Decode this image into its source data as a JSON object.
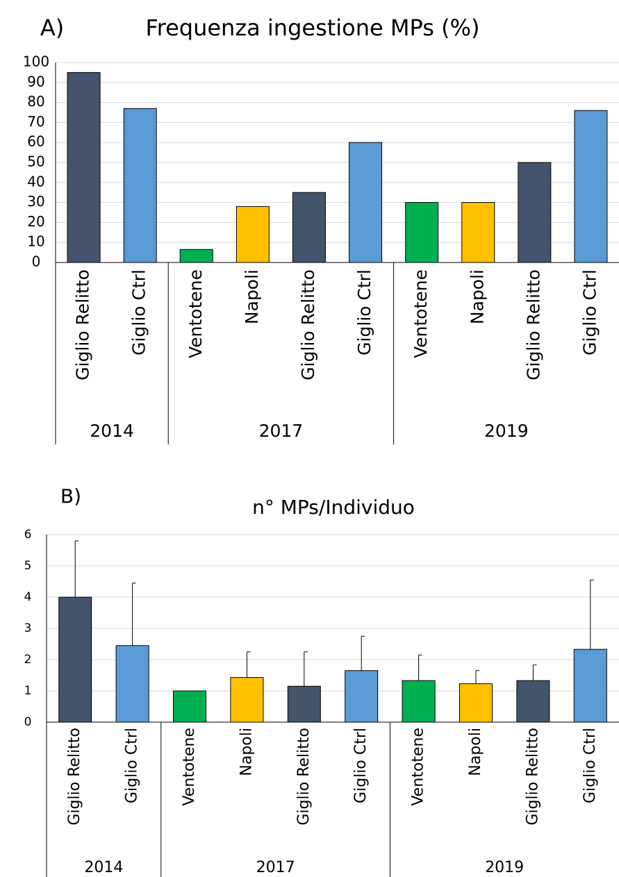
{
  "chart_data": [
    {
      "type": "bar",
      "label": "A)",
      "title": "Frequenza ingestione MPs (%)",
      "groups": [
        {
          "name": "2014",
          "categories": [
            "Giglio Relitto",
            "Giglio Ctrl"
          ]
        },
        {
          "name": "2017",
          "categories": [
            "Ventotene",
            "Napoli",
            "Giglio Relitto",
            "Giglio Ctrl"
          ]
        },
        {
          "name": "2019",
          "categories": [
            "Ventotene",
            "Napoli",
            "Giglio Relitto",
            "Giglio Ctrl"
          ]
        }
      ],
      "values": [
        95,
        77,
        6.5,
        28,
        35,
        60,
        30,
        30,
        50,
        76
      ],
      "colors": [
        "#44546a",
        "#5b9bd5",
        "#00b050",
        "#ffc000",
        "#44546a",
        "#5b9bd5",
        "#00b050",
        "#ffc000",
        "#44546a",
        "#5b9bd5"
      ],
      "ylim": [
        0,
        100
      ],
      "yticks": [
        0,
        10,
        20,
        30,
        40,
        50,
        60,
        70,
        80,
        90,
        100
      ],
      "grid": true
    },
    {
      "type": "bar",
      "label": "B)",
      "title": "n° MPs/Individuo",
      "groups": [
        {
          "name": "2014",
          "categories": [
            "Giglio Relitto",
            "Giglio Ctrl"
          ]
        },
        {
          "name": "2017",
          "categories": [
            "Ventotene",
            "Napoli",
            "Giglio Relitto",
            "Giglio Ctrl"
          ]
        },
        {
          "name": "2019",
          "categories": [
            "Ventotene",
            "Napoli",
            "Giglio Relitto",
            "Giglio Ctrl"
          ]
        }
      ],
      "values": [
        4.0,
        2.45,
        1.0,
        1.43,
        1.15,
        1.65,
        1.33,
        1.23,
        1.33,
        2.33
      ],
      "errors": [
        1.8,
        2.0,
        null,
        0.82,
        1.1,
        1.1,
        0.82,
        0.42,
        0.5,
        2.22
      ],
      "colors": [
        "#44546a",
        "#5b9bd5",
        "#00b050",
        "#ffc000",
        "#44546a",
        "#5b9bd5",
        "#00b050",
        "#ffc000",
        "#44546a",
        "#5b9bd5"
      ],
      "ylim": [
        0,
        6
      ],
      "yticks": [
        0,
        1,
        2,
        3,
        4,
        5,
        6
      ],
      "grid": true
    }
  ]
}
